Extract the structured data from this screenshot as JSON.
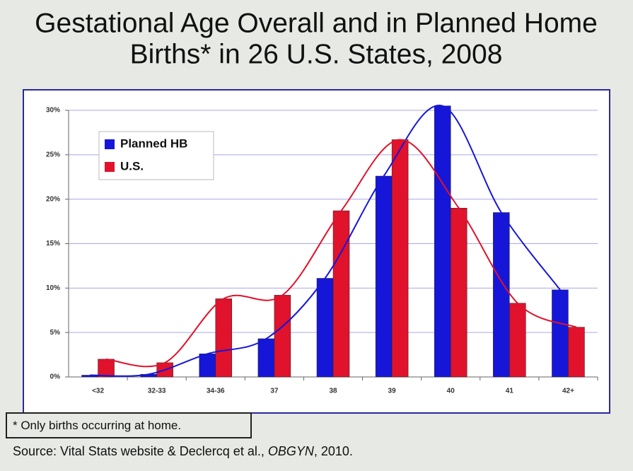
{
  "chart_data": {
    "type": "bar",
    "title": [
      "Gestational Age Overall and in Planned Home",
      "Births* in 26 U.S. States, 2008"
    ],
    "categories": [
      "<32",
      "32-33",
      "34-36",
      "37",
      "38",
      "39",
      "40",
      "41",
      "42+"
    ],
    "series": [
      {
        "name": "Planned HB",
        "color": "#1616d8",
        "values": [
          0.2,
          0.3,
          2.6,
          4.3,
          11.1,
          22.6,
          30.5,
          18.5,
          9.8
        ]
      },
      {
        "name": "U.S.",
        "color": "#e0122c",
        "values": [
          2.0,
          1.6,
          8.8,
          9.2,
          18.7,
          26.7,
          19.0,
          8.3,
          5.6
        ]
      }
    ],
    "ylim": [
      0,
      30
    ],
    "yticks": [
      {
        "value": 0,
        "label": "0%"
      },
      {
        "value": 5,
        "label": "5%"
      },
      {
        "value": 10,
        "label": "10%"
      },
      {
        "value": 15,
        "label": "15%"
      },
      {
        "value": 20,
        "label": "20%"
      },
      {
        "value": 25,
        "label": "25%"
      },
      {
        "value": 30,
        "label": "30%"
      }
    ],
    "grid": true,
    "trendlines": true,
    "legend": "upper left"
  },
  "footnote": "* Only births occurring at home.",
  "source": {
    "before": "Source: Vital Stats website & Declercq et al., ",
    "italic": "OBGYN",
    "after": ", 2010."
  }
}
